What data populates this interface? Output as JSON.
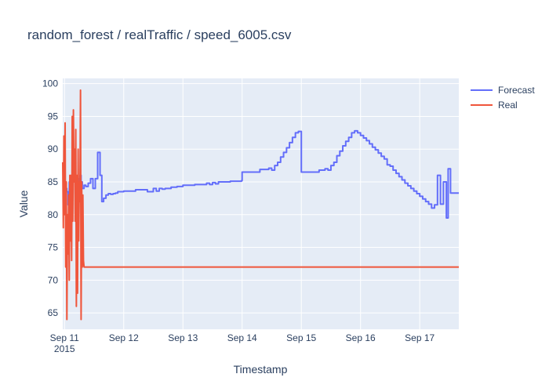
{
  "chart_data": {
    "type": "line",
    "title": "random_forest / realTraffic / speed_6005.csv",
    "xlabel": "Timestamp",
    "ylabel": "Value",
    "x_tick_labels": [
      "Sep 11",
      "Sep 12",
      "Sep 13",
      "Sep 14",
      "Sep 15",
      "Sep 16",
      "Sep 17"
    ],
    "x_tick_year": "2015",
    "x_range_days": [
      10.97,
      17.66
    ],
    "y_ticks": [
      65,
      70,
      75,
      80,
      85,
      90,
      95,
      100
    ],
    "ylim": [
      62.5,
      100.8
    ],
    "grid": true,
    "legend_position": "top-right",
    "colors": {
      "forecast": "#636efa",
      "real": "#ef553b",
      "plot_bg": "#e5ecf6",
      "grid": "#ffffff"
    },
    "series": [
      {
        "name": "Forecast",
        "shape": "step",
        "x_days": [
          10.97,
          11.0,
          11.02,
          11.04,
          11.06,
          11.08,
          11.1,
          11.12,
          11.14,
          11.16,
          11.18,
          11.2,
          11.22,
          11.24,
          11.26,
          11.28,
          11.3,
          11.33,
          11.36,
          11.4,
          11.44,
          11.48,
          11.52,
          11.56,
          11.6,
          11.63,
          11.66,
          11.7,
          11.74,
          11.78,
          11.82,
          11.86,
          11.9,
          12.0,
          12.2,
          12.4,
          12.5,
          12.55,
          12.6,
          12.65,
          12.7,
          12.8,
          12.9,
          13.0,
          13.2,
          13.4,
          13.45,
          13.5,
          13.55,
          13.6,
          13.8,
          13.99,
          14.0,
          14.3,
          14.45,
          14.5,
          14.55,
          14.6,
          14.65,
          14.7,
          14.75,
          14.8,
          14.85,
          14.9,
          14.95,
          15.0,
          15.3,
          15.4,
          15.45,
          15.5,
          15.55,
          15.6,
          15.65,
          15.7,
          15.75,
          15.8,
          15.85,
          15.9,
          15.95,
          16.0,
          16.05,
          16.1,
          16.15,
          16.2,
          16.25,
          16.3,
          16.35,
          16.4,
          16.45,
          16.5,
          16.55,
          16.6,
          16.65,
          16.7,
          16.75,
          16.8,
          16.85,
          16.9,
          16.95,
          17.0,
          17.05,
          17.1,
          17.15,
          17.2,
          17.25,
          17.3,
          17.35,
          17.4,
          17.45,
          17.48,
          17.52,
          17.56,
          17.6,
          17.65
        ],
        "y": [
          84.5,
          81.5,
          84,
          83.5,
          81.5,
          85,
          82.5,
          83,
          85.5,
          86,
          85,
          84.5,
          85.5,
          83.5,
          86,
          85,
          84,
          84.5,
          84.3,
          84.8,
          85.5,
          84,
          85.5,
          89.5,
          86,
          82,
          82.5,
          83,
          83.2,
          83.1,
          83.2,
          83.3,
          83.5,
          83.6,
          83.8,
          83.5,
          84,
          83.6,
          84,
          83.9,
          84,
          84.2,
          84.3,
          84.5,
          84.6,
          84.8,
          84.6,
          84.9,
          84.7,
          85,
          85.1,
          85.2,
          86.5,
          86.9,
          87.1,
          86.8,
          87.5,
          88,
          88.8,
          89.5,
          90.2,
          91,
          91.8,
          92.5,
          92.7,
          86.5,
          86.8,
          87,
          86.8,
          87.5,
          88,
          89,
          89.7,
          90.5,
          91.2,
          91.8,
          92.5,
          92.8,
          92.5,
          92.1,
          91.7,
          91.3,
          90.8,
          90.3,
          89.9,
          89.4,
          88.9,
          88.5,
          87.6,
          87.4,
          86.8,
          86.3,
          85.8,
          85.3,
          84.8,
          84.4,
          84,
          83.6,
          83.2,
          82.8,
          82.4,
          82,
          81.6,
          81,
          81.5,
          86,
          81.6,
          85,
          79.5,
          87,
          83.3,
          83.3,
          83.3,
          83.3
        ],
        "note_tail": true
      },
      {
        "name": "Real",
        "shape": "line",
        "x_days": [
          10.97,
          10.98,
          10.99,
          11.0,
          11.01,
          11.02,
          11.03,
          11.04,
          11.05,
          11.06,
          11.07,
          11.08,
          11.09,
          11.1,
          11.11,
          11.12,
          11.13,
          11.14,
          11.15,
          11.16,
          11.17,
          11.18,
          11.19,
          11.2,
          11.21,
          11.22,
          11.23,
          11.24,
          11.25,
          11.26,
          11.27,
          11.28,
          11.29,
          11.3,
          11.31,
          11.32,
          11.33,
          11.34,
          11.35,
          11.36,
          11.37,
          11.38,
          11.39,
          11.4,
          11.41,
          17.66
        ],
        "y": [
          88,
          78,
          92,
          80,
          94,
          72,
          85,
          64,
          80,
          74,
          83,
          70,
          86,
          76,
          86,
          73,
          95,
          79,
          96,
          85,
          90,
          79,
          93,
          66,
          86,
          68,
          90,
          76,
          85,
          82,
          99,
          64,
          85,
          72,
          83,
          73,
          72,
          72,
          72,
          72,
          72,
          72,
          72,
          72,
          72,
          72
        ]
      }
    ]
  }
}
